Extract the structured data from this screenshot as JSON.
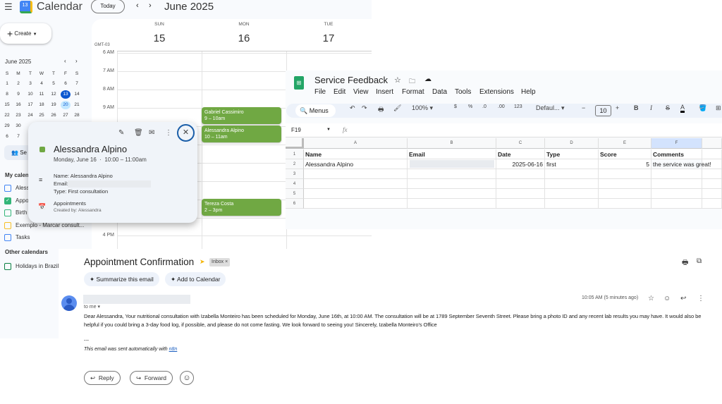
{
  "calendar": {
    "app_title": "Calendar",
    "logo_day": "13",
    "today_label": "Today",
    "period": "June 2025",
    "create_label": "Create",
    "timezone": "GMT-03",
    "days": [
      {
        "dow": "SUN",
        "date": "15"
      },
      {
        "dow": "MON",
        "date": "16"
      },
      {
        "dow": "TUE",
        "date": "17"
      }
    ],
    "hours": [
      "6 AM",
      "7 AM",
      "8 AM",
      "9 AM",
      "4 PM"
    ],
    "events": [
      {
        "title": "Gabriel Cassimiro",
        "time": "9 – 10am"
      },
      {
        "title": "Alessandra Alpino",
        "time": "10 – 11am"
      },
      {
        "title": "Tereza Costa",
        "time": "2 – 3pm"
      }
    ],
    "event_color": "#70a843",
    "mini": {
      "title": "June 2025",
      "dow": [
        "S",
        "M",
        "T",
        "W",
        "T",
        "F",
        "S"
      ],
      "weeks": [
        [
          "1",
          "2",
          "3",
          "4",
          "5",
          "6",
          "7"
        ],
        [
          "8",
          "9",
          "10",
          "11",
          "12",
          "13",
          "14"
        ],
        [
          "15",
          "16",
          "17",
          "18",
          "19",
          "20",
          "21"
        ],
        [
          "22",
          "23",
          "24",
          "25",
          "26",
          "27",
          "28"
        ],
        [
          "29",
          "30"
        ],
        [
          "6",
          "7"
        ]
      ],
      "today": "13",
      "selected": "20"
    },
    "search_people": "Se",
    "my_calendars_label": "My calen",
    "my_calendars": [
      {
        "label": "Aless",
        "color": "#4285f4",
        "checked": false
      },
      {
        "label": "Appo",
        "color": "#33b679",
        "checked": true
      },
      {
        "label": "Birth",
        "color": "#33b679",
        "checked": false
      },
      {
        "label": "Exemplo - Marcar consult...",
        "color": "#f6bf26",
        "checked": false
      },
      {
        "label": "Tasks",
        "color": "#4285f4",
        "checked": false
      }
    ],
    "other_calendars_label": "Other calendars",
    "other_calendars": [
      {
        "label": "Holidays in Brazil",
        "color": "#0b8043"
      }
    ],
    "popup": {
      "title": "Alessandra Alpino",
      "date": "Monday, June 16",
      "sep": "·",
      "time": "10:00 – 11:00am",
      "desc": [
        "Name: Alessandra Alpino",
        "Email:",
        "Type: First consultation"
      ],
      "calendar": "Appointments",
      "created_by": "Created by: Alessandra"
    }
  },
  "sheet": {
    "title": "Service Feedback",
    "menu": [
      "File",
      "Edit",
      "View",
      "Insert",
      "Format",
      "Data",
      "Tools",
      "Extensions",
      "Help"
    ],
    "toolbar": {
      "search": "Menus",
      "zoom": "100%",
      "currency": "$",
      "percent": "%",
      "dec_less": ".0",
      "dec_more": ".00",
      "format": "123",
      "font": "Defaul...",
      "font_size": "10",
      "bold": "B",
      "italic": "I",
      "text_color": "A"
    },
    "name_box": "F19",
    "fx": "fx",
    "columns": [
      "A",
      "B",
      "C",
      "D",
      "E",
      "F"
    ],
    "rows": [
      [
        "Name",
        "Email",
        "Date",
        "Type",
        "Score",
        "Comments"
      ],
      [
        "Alessandra Alpino",
        "",
        "2025-06-16",
        "first",
        "5",
        "the service was great!"
      ],
      [
        "",
        "",
        "",
        "",
        "",
        ""
      ],
      [
        "",
        "",
        "",
        "",
        "",
        ""
      ],
      [
        "",
        "",
        "",
        "",
        "",
        ""
      ],
      [
        "",
        "",
        "",
        "",
        "",
        ""
      ]
    ],
    "row_numbers": [
      "1",
      "2",
      "3",
      "4",
      "5",
      "6"
    ],
    "selected_column": "F"
  },
  "email": {
    "subject": "Appointment Confirmation",
    "label": "Inbox",
    "label_close": "×",
    "ai_buttons": [
      "Summarize this email",
      "Add to Calendar"
    ],
    "to": "to me ▾",
    "time": "10:05 AM (5 minutes ago)",
    "body": "Dear Alessandra, Your nutritional consultation with Izabella Monteiro has been scheduled for Monday, June 16th, at 10:00 AM. The consultation will be at 1789 September Seventh Street. Please bring a photo ID and any recent lab results you may have. It would also be helpful if you could bring a 3-day food log, if possible, and please do not come fasting. We look forward to seeing you! Sincerely, Izabella Monteiro's Office",
    "sig_sep": "---",
    "footer": "This email was sent automatically with ",
    "footer_link": "n8n",
    "reply": "Reply",
    "forward": "Forward"
  }
}
